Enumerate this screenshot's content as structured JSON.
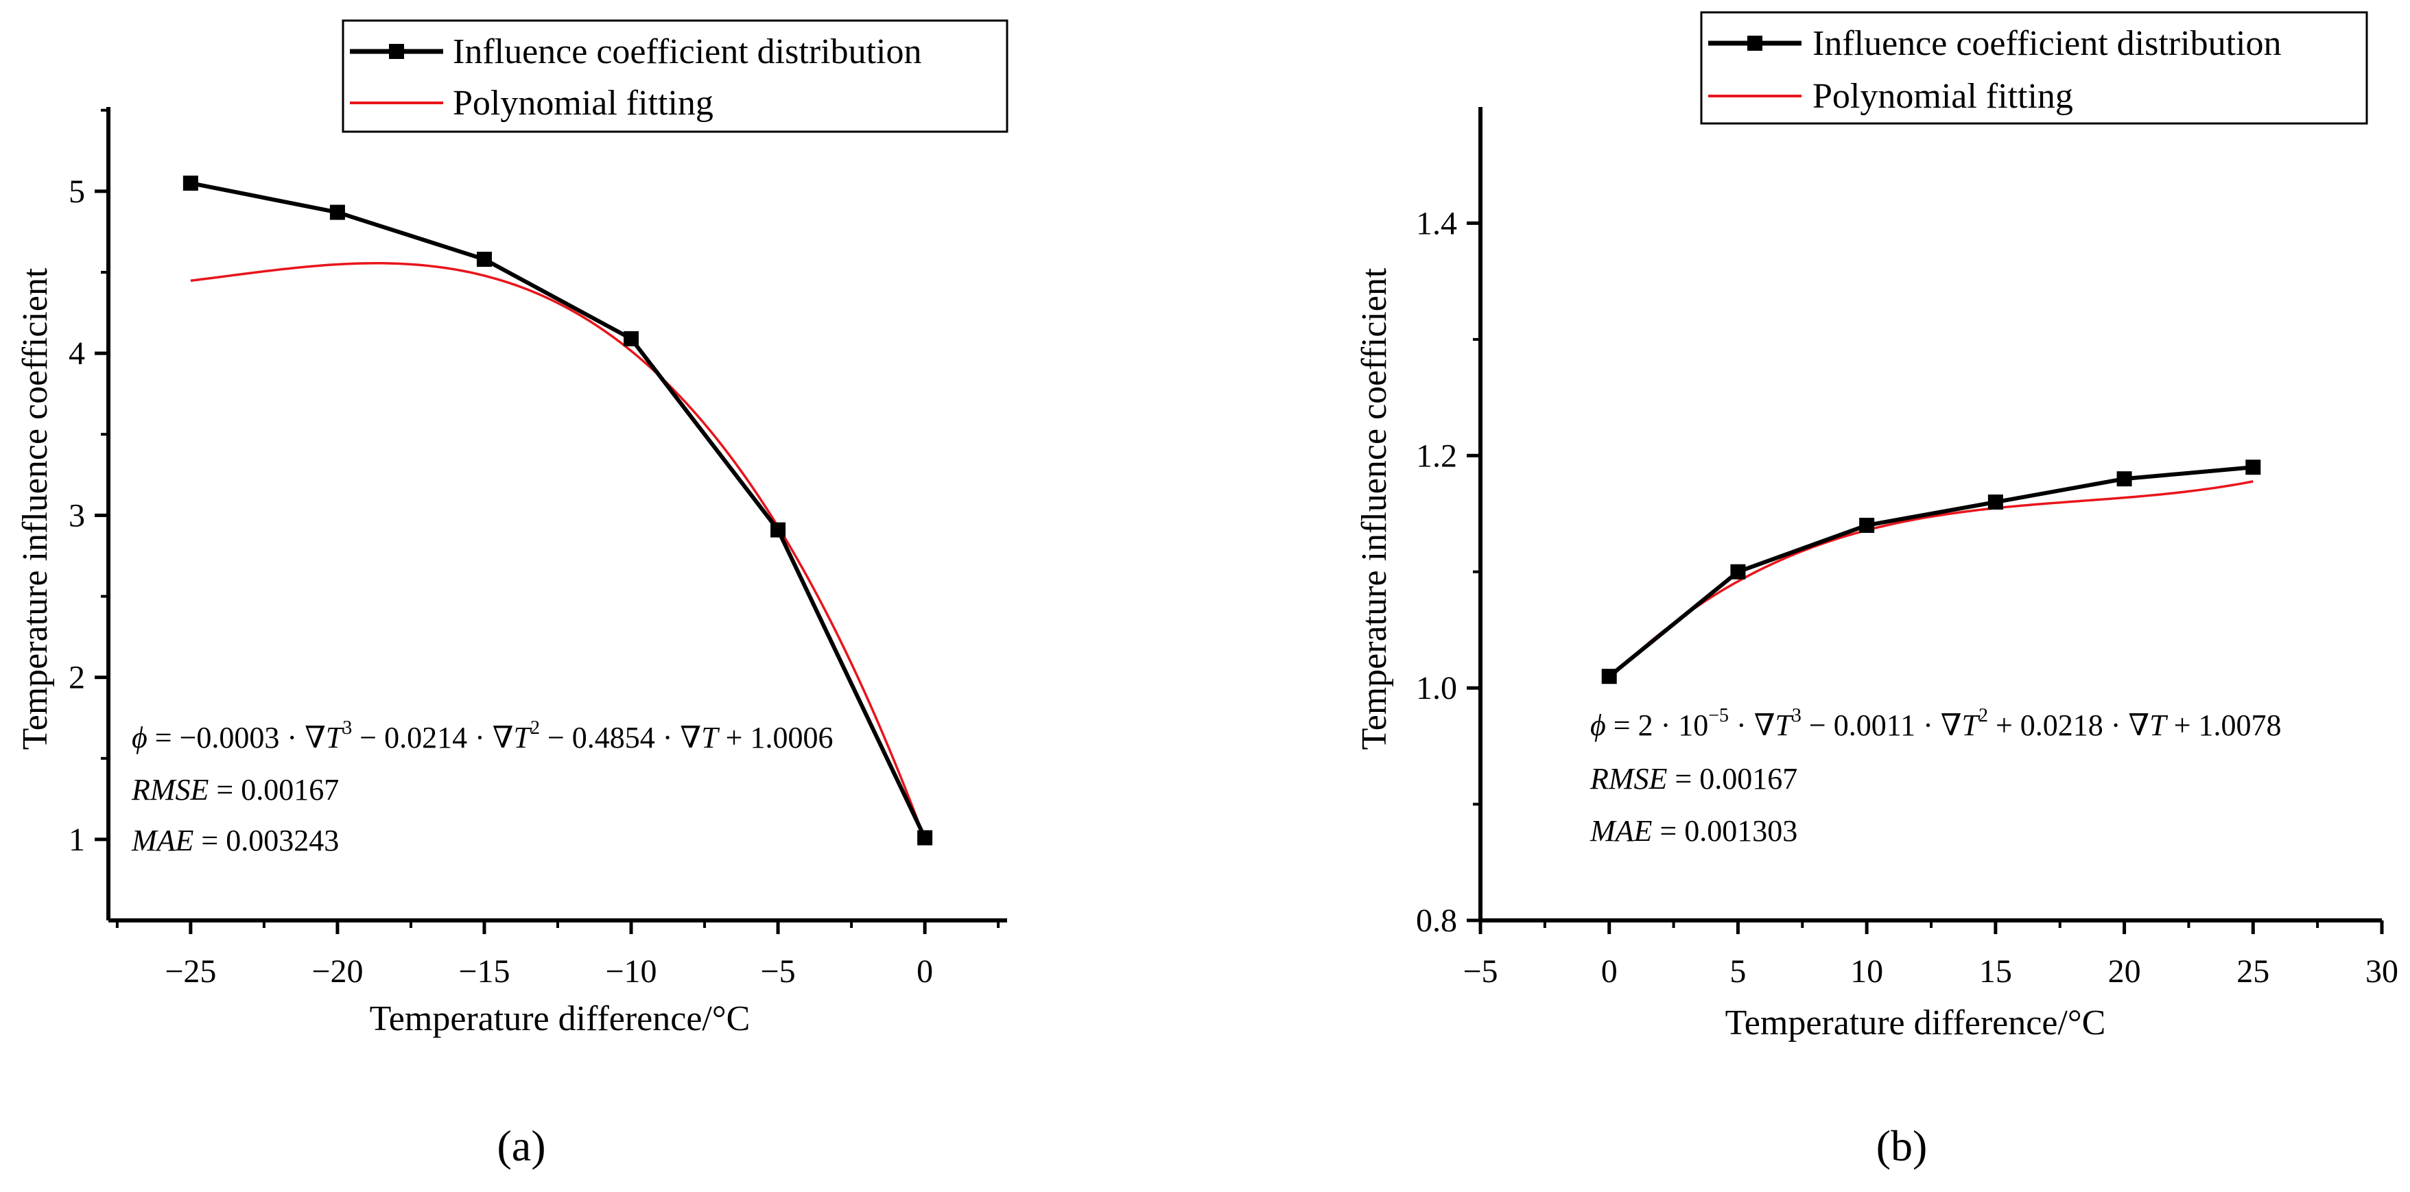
{
  "figure": {
    "panel_a_label": "(a)",
    "panel_b_label": "(b)"
  },
  "colors": {
    "data_series": "#000000",
    "fit_series": "#e8151b",
    "axis": "#000000"
  },
  "chart_data": [
    {
      "type": "line",
      "panel": "a",
      "xlabel": "Temperature difference/°C",
      "ylabel": "Temperature influence coefficient",
      "xlim": [
        -27.8,
        2.8
      ],
      "ylim": [
        0.5,
        5.52
      ],
      "x_ticks": [
        -25,
        -20,
        -15,
        -10,
        -5,
        0
      ],
      "x_tick_labels": [
        "−25",
        "−20",
        "−15",
        "−10",
        "−5",
        "0"
      ],
      "y_ticks": [
        1,
        2,
        3,
        4,
        5
      ],
      "y_tick_labels": [
        "1",
        "2",
        "3",
        "4",
        "5"
      ],
      "legend": {
        "position": "top-right",
        "entries": [
          "Influence coefficient distribution",
          "Polynomial fitting"
        ]
      },
      "series": [
        {
          "name": "Influence coefficient distribution",
          "style": "line-with-square-markers",
          "x": [
            -25,
            -20,
            -15,
            -10,
            -5,
            0
          ],
          "y": [
            5.05,
            4.87,
            4.58,
            4.09,
            2.91,
            1.01
          ]
        },
        {
          "name": "Polynomial fitting",
          "style": "line",
          "coefficients": [
            -0.0003,
            -0.0214,
            -0.4854,
            1.0006
          ],
          "x_range": [
            -25,
            0
          ]
        }
      ],
      "annotations": [
        "ϕ = −0.0003·∇T³ − 0.0214·∇T² − 0.4854·∇T + 1.0006",
        "RMSE = 0.00167",
        "MAE = 0.003243"
      ]
    },
    {
      "type": "line",
      "panel": "b",
      "xlabel": "Temperature difference/°C",
      "ylabel": "Temperature influence coefficient",
      "xlim": [
        -5,
        30
      ],
      "ylim": [
        0.8,
        1.5
      ],
      "x_ticks": [
        -5,
        0,
        5,
        10,
        15,
        20,
        25,
        30
      ],
      "x_tick_labels": [
        "−5",
        "0",
        "5",
        "10",
        "15",
        "20",
        "25",
        "30"
      ],
      "y_ticks": [
        0.8,
        1.0,
        1.2,
        1.4
      ],
      "y_tick_labels": [
        "0.8",
        "1.0",
        "1.2",
        "1.4"
      ],
      "legend": {
        "position": "top-right",
        "entries": [
          "Influence coefficient distribution",
          "Polynomial fitting"
        ]
      },
      "series": [
        {
          "name": "Influence coefficient distribution",
          "style": "line-with-square-markers",
          "x": [
            0,
            5,
            10,
            15,
            20,
            25
          ],
          "y": [
            1.01,
            1.1,
            1.14,
            1.16,
            1.18,
            1.19
          ]
        },
        {
          "name": "Polynomial fitting",
          "style": "line",
          "coefficients": [
            2e-05,
            -0.0011,
            0.0218,
            1.0078
          ],
          "x_range": [
            0,
            25
          ]
        }
      ],
      "annotations": [
        "ϕ = 2·10⁻⁵·∇T³ − 0.0011·∇T² + 0.0218·∇T + 1.0078",
        "RMSE = 0.00167",
        "MAE = 0.001303"
      ]
    }
  ]
}
